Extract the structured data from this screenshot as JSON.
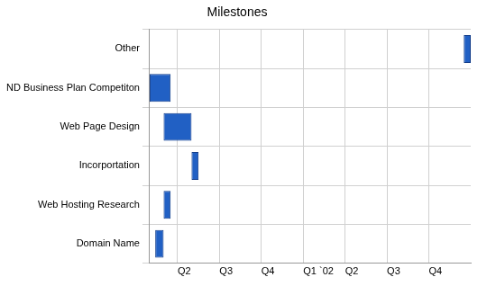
{
  "chart_data": {
    "type": "bar",
    "title": "Milestones",
    "orientation": "horizontal",
    "categories": [
      "Other",
      "ND Business Plan Competiton",
      "Web Page Design",
      "Incorportation",
      "Web Hosting Research",
      "Domain Name"
    ],
    "values": [
      [
        23.5,
        24
      ],
      [
        1.0,
        2.5
      ],
      [
        2.0,
        4.0
      ],
      [
        4.0,
        4.5
      ],
      [
        2.0,
        2.5
      ],
      [
        1.4,
        2.0
      ]
    ],
    "color": "#2160c4",
    "xlim": [
      1,
      24
    ],
    "xticks": [
      {
        "value": 3,
        "label": "Q2"
      },
      {
        "value": 6,
        "label": "Q3"
      },
      {
        "value": 9,
        "label": "Q4"
      },
      {
        "value": 12,
        "label": "Q1 `02"
      },
      {
        "value": 15,
        "label": "Q2"
      },
      {
        "value": 18,
        "label": "Q3"
      },
      {
        "value": 21,
        "label": "Q4"
      }
    ],
    "grid": true
  }
}
